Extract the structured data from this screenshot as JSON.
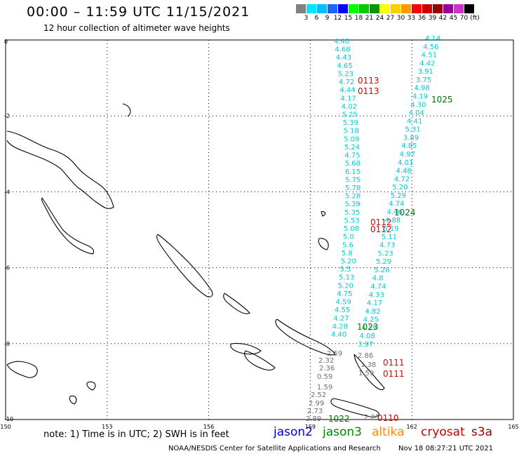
{
  "header": {
    "title": "00:00 – 11:59 UTC 11/15/2021",
    "subtitle": "12 hour collection of altimeter wave heights"
  },
  "legend": {
    "unit": "(ft)",
    "ticks": [
      "3",
      "6",
      "9",
      "12",
      "15",
      "18",
      "21",
      "24",
      "27",
      "30",
      "33",
      "36",
      "39",
      "42",
      "45",
      "70"
    ],
    "colors": [
      "#808080",
      "#00e5ff",
      "#00bfff",
      "#1e64ff",
      "#0000ff",
      "#00ff00",
      "#00cc00",
      "#009900",
      "#ffff00",
      "#ffcc00",
      "#ff9900",
      "#ff0000",
      "#cc0000",
      "#990000",
      "#990099",
      "#cc33cc",
      "#000000"
    ]
  },
  "axes": {
    "x_ticks": [
      "150",
      "153",
      "156",
      "159",
      "162",
      "165"
    ],
    "y_ticks": [
      "0",
      "-2",
      "-4",
      "-6",
      "-8",
      "-10"
    ],
    "grid": "dotted"
  },
  "footer": {
    "note": "note: 1) Time is in UTC; 2) SWH is in feet",
    "credit": "NOAA/NESDIS Center for Satellite Applications and Research",
    "timestamp": "Nov 18 08:27:21 UTC 2021"
  },
  "missions": [
    {
      "label": "jason2",
      "color": "#0000cc"
    },
    {
      "label": "jason3",
      "color": "#008800"
    },
    {
      "label": "altika",
      "color": "#ff8800"
    },
    {
      "label": "cryosat",
      "color": "#cc0000"
    },
    {
      "label": "s3a",
      "color": "#990000"
    }
  ],
  "track_times": {
    "red": [
      "0113",
      "0113",
      "0112",
      "0112",
      "0111",
      "0111",
      "0110"
    ],
    "green": [
      "1025",
      "1024",
      "1023",
      "1022"
    ]
  },
  "tracks": {
    "left_cyan": [
      "4.40",
      "4.68",
      "4.43",
      "4.65",
      "5.23",
      "4.72",
      "4.44",
      "4.17",
      "4.02",
      "5.25",
      "5.39",
      "5.18",
      "5.09",
      "5.24",
      "4.75",
      "5.68",
      "6.15",
      "5.75",
      "5.78",
      "5.28",
      "5.39",
      "5.35",
      "5.53",
      "5.08",
      "5.0",
      "5.6",
      "5.8",
      "5.20",
      "5.5",
      "5.13",
      "5.20",
      "4.75",
      "4.59",
      "4.55",
      "4.27",
      "4.28",
      "4.40"
    ],
    "right_cyan": [
      "4.14",
      "4.56",
      "4.51",
      "4.42",
      "3.91",
      "3.75",
      "4.98",
      "4.19",
      "4.30",
      "4.04",
      "4.41",
      "5.31",
      "3.89",
      "4.85",
      "4.97",
      "4.01",
      "4.48",
      "4.72",
      "5.20",
      "5.29",
      "4.74",
      "4.46",
      "4.88",
      "5.19",
      "5.11",
      "4.73",
      "5.23",
      "5.29",
      "5.28",
      "4.8",
      "4.74",
      "4.33",
      "4.17",
      "4.82",
      "4.25",
      "4.29",
      "4.08",
      "3.97"
    ],
    "gray": [
      "2.59",
      "2.32",
      "2.36",
      "0.59",
      "1.59",
      "2.52",
      "2.99",
      "2.73",
      "2.89",
      "2.86",
      "1.38",
      "1.59",
      "2.25"
    ]
  }
}
